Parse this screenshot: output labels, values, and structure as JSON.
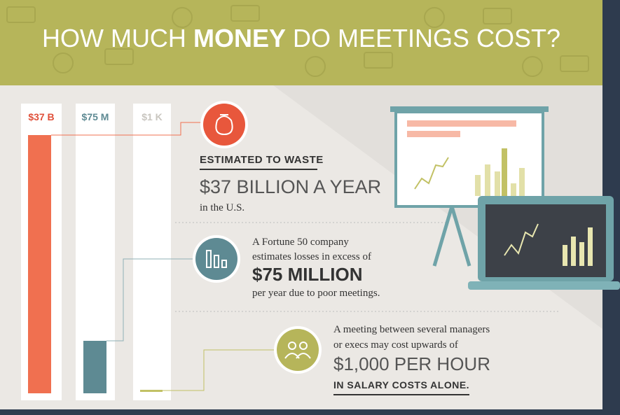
{
  "header": {
    "title_start": "HOW MUCH",
    "title_emphasis": "MONEY",
    "title_end": "DO MEETINGS COST?"
  },
  "bars": [
    {
      "label": "$37 B"
    },
    {
      "label": "$75 M"
    },
    {
      "label": "$1 K"
    }
  ],
  "sections": [
    {
      "heading": "ESTIMATED TO WASTE",
      "amount": "$37 BILLION A YEAR",
      "note": "in the U.S."
    },
    {
      "lines": [
        "A Fortune 50 company",
        "estimates losses in excess of"
      ],
      "amount": "$75 MILLION",
      "note": "per year due to poor meetings."
    },
    {
      "lines": [
        "A meeting between several managers",
        "or execs may cost upwards of"
      ],
      "amount": "$1,000 PER HOUR",
      "note": "IN SALARY COSTS ALONE."
    }
  ]
}
